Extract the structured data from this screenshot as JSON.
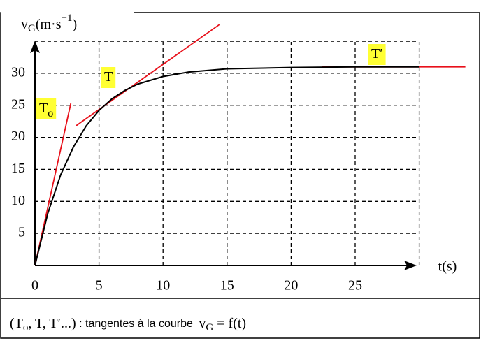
{
  "chart_data": {
    "type": "line",
    "y_label": [
      "v",
      "G",
      "(m·s",
      "−1",
      ")"
    ],
    "x_label": "t(s)",
    "x": [
      0,
      1,
      2,
      3,
      4,
      5,
      6,
      7,
      8,
      10,
      12,
      15,
      20,
      25,
      30
    ],
    "values": [
      0,
      8.1,
      14.1,
      18.5,
      21.8,
      24.2,
      26.0,
      27.3,
      28.3,
      29.5,
      30.2,
      30.7,
      30.9,
      31,
      31
    ],
    "color": "#000000",
    "xlim": [
      0,
      30
    ],
    "ylim": [
      0,
      35
    ],
    "xticks": [
      0,
      5,
      10,
      15,
      20,
      25
    ],
    "yticks": [
      5,
      10,
      15,
      20,
      25,
      30
    ],
    "grid": true,
    "tangents": [
      {
        "label": [
          "T",
          "o"
        ],
        "x": [
          0,
          2.8
        ],
        "values": [
          0,
          25.3
        ],
        "color": "#e8101a"
      },
      {
        "label": [
          "T"
        ],
        "x": [
          3.2,
          14.4
        ],
        "values": [
          21.8,
          37.6
        ],
        "color": "#e8101a"
      },
      {
        "label": [
          "T′"
        ],
        "x": [
          22.4,
          33.6
        ],
        "values": [
          31,
          31
        ],
        "color": "#e8101a"
      }
    ],
    "caption": [
      "(T",
      "o",
      ", T, T′...)",
      " : tangentes à la courbe ",
      "v",
      "G",
      " = f(t)"
    ]
  }
}
